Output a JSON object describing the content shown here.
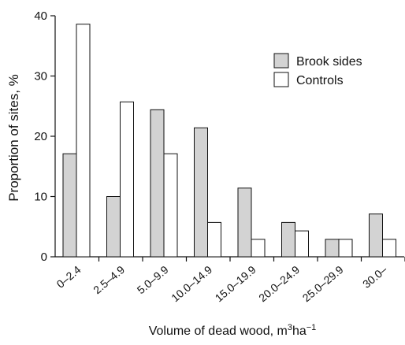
{
  "chart_data": {
    "type": "bar",
    "categories": [
      "0–2.4",
      "2.5–4.9",
      "5.0–9.9",
      "10.0–14.9",
      "15.0–19.9",
      "20.0–24.9",
      "25.0–29.9",
      "30.0–"
    ],
    "series": [
      {
        "name": "Brook sides",
        "values": [
          17.1,
          10.0,
          24.4,
          21.4,
          11.4,
          5.7,
          2.9,
          7.1
        ],
        "color": "#d3d3d3"
      },
      {
        "name": "Controls",
        "values": [
          38.6,
          25.7,
          17.1,
          5.7,
          2.9,
          4.3,
          2.9,
          2.9
        ],
        "color": "#ffffff"
      }
    ],
    "ylabel": "Proportion of sites, %",
    "xlabel": {
      "base": "Volume of dead wood, m",
      "sup1": "3",
      "mid": "ha",
      "sup2": "−1"
    },
    "ylim": [
      0,
      40
    ],
    "yticks": [
      0,
      10,
      20,
      30,
      40
    ],
    "grid": false,
    "legend_position": "top-right",
    "edge_color": "#111111"
  }
}
